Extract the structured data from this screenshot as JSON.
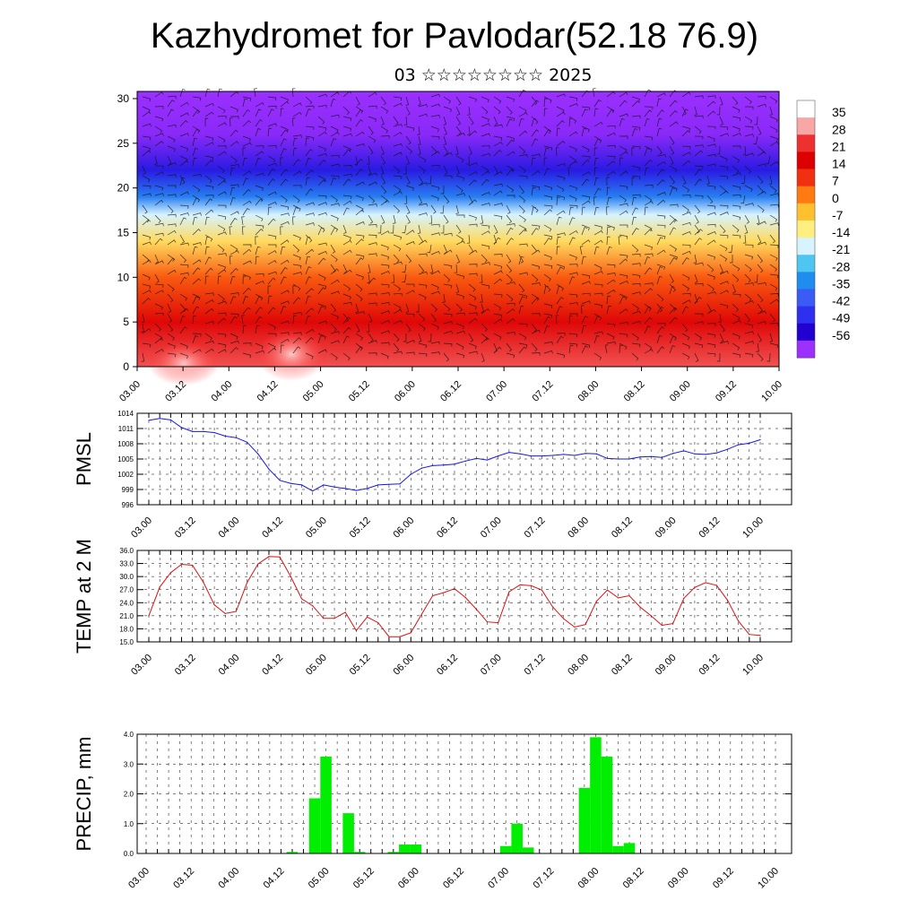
{
  "title": "Kazhydromet for Pavlodar(52.18 76.9)",
  "subtitle": "03 ☆☆☆☆☆☆☆☆ 2025",
  "time_labels": [
    "03.00",
    "03.12",
    "04.00",
    "04.12",
    "05.00",
    "05.12",
    "06.00",
    "06.12",
    "07.00",
    "07.12",
    "08.00",
    "08.12",
    "09.00",
    "09.12",
    "10.00"
  ],
  "chart_data": [
    {
      "type": "heatmap",
      "title": "",
      "xlabel": "",
      "ylabel": "",
      "x": [
        "03.00",
        "03.12",
        "04.00",
        "04.12",
        "05.00",
        "05.12",
        "06.00",
        "06.12",
        "07.00",
        "07.12",
        "08.00",
        "08.12",
        "09.00",
        "09.12",
        "10.00"
      ],
      "y_ticks": [
        0,
        5,
        10,
        15,
        20,
        25,
        30
      ],
      "ylim": [
        0,
        30.8
      ],
      "colorbar_labels": [
        "35",
        "28",
        "21",
        "14",
        "7",
        "0",
        "-7",
        "-14",
        "-21",
        "-28",
        "-35",
        "-42",
        "-49",
        "-56"
      ],
      "colorbar_colors": [
        "#ffffff",
        "#f8a6a6",
        "#ee3030",
        "#dd0000",
        "#f03010",
        "#ff7a10",
        "#ffc030",
        "#ffee80",
        "#d7f3ff",
        "#4fc6f2",
        "#1f8cf0",
        "#3a5cf5",
        "#2f2ff0",
        "#2200d0",
        "#9b30ff"
      ],
      "profile": [
        {
          "height": 0,
          "value": 30
        },
        {
          "height": 5,
          "value": 22
        },
        {
          "height": 10,
          "value": 10
        },
        {
          "height": 14,
          "value": -4
        },
        {
          "height": 17,
          "value": -14
        },
        {
          "height": 19,
          "value": -30
        },
        {
          "height": 22,
          "value": -45
        },
        {
          "height": 26,
          "value": -55
        },
        {
          "height": 30.8,
          "value": -58
        }
      ],
      "wind_barbs": true
    },
    {
      "type": "line",
      "title": "",
      "ylabel": "PMSL",
      "xlabel": "",
      "y_ticks": [
        996,
        999,
        1002,
        1005,
        1008,
        1011,
        1014
      ],
      "ylim": [
        996,
        1014
      ],
      "grid": true,
      "color": "#1515e6",
      "x": [
        "03.00",
        "03.03",
        "03.06",
        "03.09",
        "03.12",
        "03.15",
        "03.18",
        "03.21",
        "04.00",
        "04.03",
        "04.06",
        "04.09",
        "04.12",
        "04.15",
        "04.18",
        "04.21",
        "05.00",
        "05.03",
        "05.06",
        "05.09",
        "05.12",
        "05.15",
        "05.18",
        "05.21",
        "06.00",
        "06.03",
        "06.06",
        "06.09",
        "06.12",
        "06.15",
        "06.18",
        "06.21",
        "07.00",
        "07.03",
        "07.06",
        "07.09",
        "07.12",
        "07.15",
        "07.18",
        "07.21",
        "08.00",
        "08.03",
        "08.06",
        "08.09",
        "08.12",
        "08.15",
        "08.18",
        "08.21",
        "09.00",
        "09.03",
        "09.06",
        "09.09",
        "09.12",
        "09.15",
        "09.18",
        "09.21",
        "10.00"
      ],
      "values": [
        1012.6,
        1013.0,
        1012.7,
        1011.2,
        1010.4,
        1010.4,
        1010.2,
        1009.5,
        1009.2,
        1008.3,
        1006.0,
        1003.0,
        1000.8,
        1000.2,
        999.9,
        998.7,
        999.9,
        999.5,
        999.2,
        998.8,
        999.2,
        999.9,
        1000.0,
        1000.1,
        1002.0,
        1003.2,
        1003.7,
        1003.8,
        1004.0,
        1004.6,
        1005.1,
        1004.8,
        1005.6,
        1006.3,
        1006.0,
        1005.6,
        1005.6,
        1005.7,
        1005.9,
        1005.7,
        1006.1,
        1006.0,
        1005.1,
        1005.0,
        1005.0,
        1005.4,
        1005.5,
        1005.3,
        1006.1,
        1006.6,
        1006.0,
        1005.9,
        1006.2,
        1006.9,
        1007.8,
        1008.1,
        1008.8
      ]
    },
    {
      "type": "line",
      "title": "",
      "ylabel": "TEMP at 2 M",
      "xlabel": "",
      "y_ticks": [
        "15.0",
        "18.0",
        "21.0",
        "24.0",
        "27.0",
        "30.0",
        "33.0",
        "36.0"
      ],
      "ylim": [
        15,
        36
      ],
      "grid": true,
      "color": "#dd1010",
      "x": [
        "03.00",
        "03.03",
        "03.06",
        "03.09",
        "03.12",
        "03.15",
        "03.18",
        "03.21",
        "04.00",
        "04.03",
        "04.06",
        "04.09",
        "04.12",
        "04.15",
        "04.18",
        "04.21",
        "05.00",
        "05.03",
        "05.06",
        "05.09",
        "05.12",
        "05.15",
        "05.18",
        "05.21",
        "06.00",
        "06.03",
        "06.06",
        "06.09",
        "06.12",
        "06.15",
        "06.18",
        "06.21",
        "07.00",
        "07.03",
        "07.06",
        "07.09",
        "07.12",
        "07.15",
        "07.18",
        "07.21",
        "08.00",
        "08.03",
        "08.06",
        "08.09",
        "08.12",
        "08.15",
        "08.18",
        "08.21",
        "09.00",
        "09.03",
        "09.06",
        "09.09",
        "09.12",
        "09.15",
        "09.18",
        "09.21",
        "10.00"
      ],
      "values": [
        21.0,
        27.6,
        30.9,
        32.8,
        32.6,
        28.7,
        23.5,
        21.5,
        22.0,
        28.6,
        32.9,
        34.6,
        34.5,
        30.0,
        24.9,
        23.3,
        20.4,
        20.4,
        21.8,
        17.6,
        20.7,
        19.4,
        16.2,
        16.2,
        17.1,
        21.4,
        25.6,
        26.3,
        27.2,
        25.2,
        22.5,
        19.6,
        19.4,
        26.5,
        28.1,
        27.9,
        26.9,
        23.0,
        20.3,
        18.4,
        19.0,
        24.3,
        26.9,
        25.1,
        25.6,
        23.0,
        21.0,
        18.8,
        19.2,
        25.0,
        27.5,
        28.6,
        28.0,
        24.6,
        19.8,
        16.7,
        16.5
      ]
    },
    {
      "type": "bar",
      "title": "",
      "ylabel": "PRECIP, mm",
      "xlabel": "",
      "y_ticks": [
        "0.0",
        "1.0",
        "2.0",
        "3.0",
        "4.0"
      ],
      "ylim": [
        0,
        4
      ],
      "grid": true,
      "color": "#00ee00",
      "x": [
        "03.00",
        "03.03",
        "03.06",
        "03.09",
        "03.12",
        "03.15",
        "03.18",
        "03.21",
        "04.00",
        "04.03",
        "04.06",
        "04.09",
        "04.12",
        "04.15",
        "04.18",
        "04.21",
        "05.00",
        "05.03",
        "05.06",
        "05.09",
        "05.12",
        "05.15",
        "05.18",
        "05.21",
        "06.00",
        "06.03",
        "06.06",
        "06.09",
        "06.12",
        "06.15",
        "06.18",
        "06.21",
        "07.00",
        "07.03",
        "07.06",
        "07.09",
        "07.12",
        "07.15",
        "07.18",
        "07.21",
        "08.00",
        "08.03",
        "08.06",
        "08.09",
        "08.12",
        "08.15",
        "08.18",
        "08.21",
        "09.00",
        "09.03",
        "09.06",
        "09.09",
        "09.12",
        "09.15",
        "09.18",
        "09.21",
        "10.00"
      ],
      "values": [
        0,
        0,
        0,
        0,
        0,
        0,
        0,
        0,
        0,
        0,
        0,
        0,
        0,
        0.05,
        0,
        1.85,
        3.25,
        0,
        1.35,
        0.05,
        0,
        0,
        0.05,
        0.3,
        0.3,
        0,
        0,
        0,
        0,
        0,
        0,
        0,
        0.25,
        1.0,
        0.2,
        0,
        0,
        0,
        0,
        2.2,
        3.9,
        3.25,
        0.25,
        0.35,
        0,
        0,
        0,
        0,
        0,
        0,
        0,
        0,
        0,
        0,
        0,
        0,
        0
      ]
    }
  ]
}
